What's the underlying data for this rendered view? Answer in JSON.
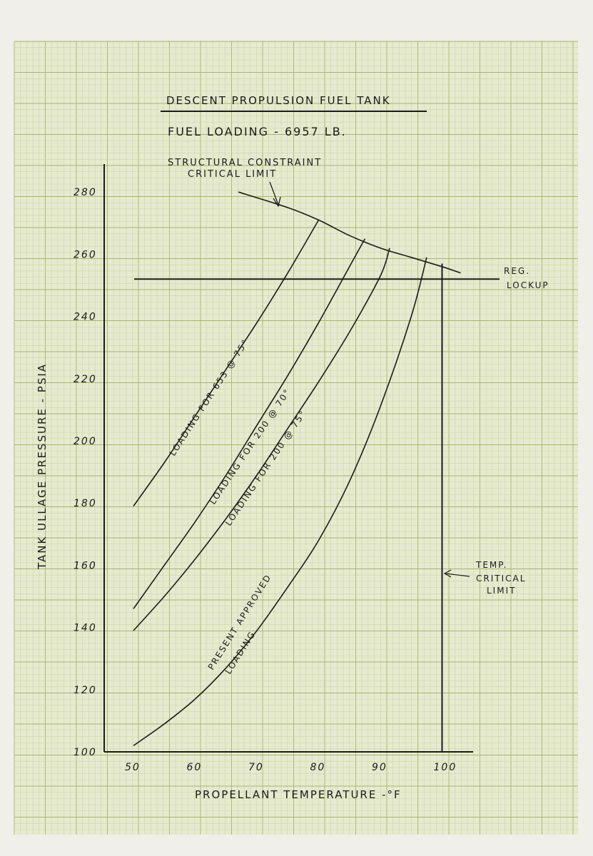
{
  "chart_data": {
    "type": "line",
    "title": "DESCENT PROPULSION FUEL TANK",
    "subtitle": "FUEL LOADING - 6957 LB.",
    "xlabel": "PROPELLANT TEMPERATURE -°F",
    "ylabel": "TANK ULLAGE PRESSURE - PSIA",
    "xlim": [
      45,
      105
    ],
    "ylim": [
      100,
      290
    ],
    "x_ticks": [
      50,
      60,
      70,
      80,
      90,
      100
    ],
    "y_ticks": [
      100,
      120,
      140,
      160,
      180,
      200,
      220,
      240,
      260,
      280
    ],
    "grid": true,
    "series": [
      {
        "name": "LOADING FOR 653 @ 75°",
        "label": "LOADING FOR 653 @ 75°",
        "x": [
          50,
          55,
          60,
          65,
          70,
          75,
          80
        ],
        "y": [
          179,
          193,
          208,
          223,
          238,
          254,
          271
        ]
      },
      {
        "name": "LOADING FOR 200 @ 70°",
        "label": "LOADING FOR 200 @ 70°",
        "x": [
          50,
          55,
          60,
          65,
          70,
          75,
          80,
          85,
          87.5
        ],
        "y": [
          146,
          160,
          174,
          189,
          205,
          221,
          238,
          256,
          265
        ]
      },
      {
        "name": "LOADING FOR 200 @ 75°",
        "label": "LOADING FOR 200 @ 75°",
        "x": [
          50,
          55,
          60,
          65,
          70,
          75,
          80,
          85,
          90,
          91.5
        ],
        "y": [
          139,
          150,
          162,
          175,
          189,
          204,
          219,
          235,
          253,
          262
        ]
      },
      {
        "name": "PRESENT APPROVED LOADING",
        "label": "PRESENT APPROVED LOADING",
        "x": [
          50,
          55,
          60,
          65,
          70,
          75,
          80,
          85,
          90,
          95,
          97.5
        ],
        "y": [
          102,
          109,
          117,
          127,
          139,
          153,
          168,
          187,
          211,
          240,
          259
        ]
      },
      {
        "name": "STRUCTURAL CONSTRAINT CRITICAL LIMIT",
        "label": "STRUCTURAL CONSTRAINT CRITICAL LIMIT",
        "x": [
          67,
          75,
          80,
          85,
          90,
          95,
          100,
          103
        ],
        "y": [
          280,
          275,
          271,
          266,
          262,
          259,
          256,
          254
        ]
      }
    ],
    "reference_lines": [
      {
        "orientation": "horizontal",
        "value": 252,
        "label_line1": "REG.",
        "label_line2": "LOCKUP"
      },
      {
        "orientation": "vertical",
        "value": 100,
        "label_line1": "TEMP.",
        "label_line2": "CRITICAL",
        "label_line3": "LIMIT"
      }
    ],
    "annotations": {
      "structural_line1": "STRUCTURAL CONSTRAINT",
      "structural_line2": "CRITICAL LIMIT",
      "present_line1": "PRESENT APPROVED",
      "present_line2": "LOADING"
    },
    "colors": {
      "paper": "#f1efe9",
      "graph_bg": "#e6ead0",
      "grid_minor": "#c9d29c",
      "grid_major": "#a8b56a",
      "ink": "#1b1b1b"
    }
  }
}
